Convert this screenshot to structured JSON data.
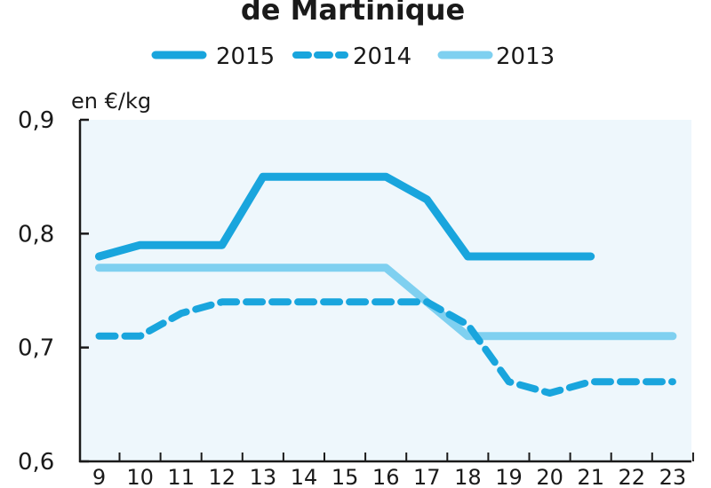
{
  "chart_data": {
    "type": "line",
    "title": "de Martinique",
    "ylabel": "en €/kg",
    "xlabel": "",
    "x": [
      9,
      10,
      11,
      12,
      13,
      14,
      15,
      16,
      17,
      18,
      19,
      20,
      21,
      22,
      23
    ],
    "x_tick_labels": [
      "9",
      "10",
      "11",
      "12",
      "13",
      "14",
      "15",
      "16",
      "17",
      "18",
      "19",
      "20",
      "21",
      "22",
      "23"
    ],
    "ylim": [
      0.6,
      0.9
    ],
    "y_ticks": [
      0.6,
      0.7,
      0.8,
      0.9
    ],
    "y_tick_labels": [
      "0,6",
      "0,7",
      "0,8",
      "0,9"
    ],
    "grid": false,
    "legend_position": "top",
    "series": [
      {
        "name": "2015",
        "style": "solid-thick",
        "color": "#19a5dd",
        "x": [
          9,
          10,
          11,
          12,
          13,
          14,
          15,
          16,
          17,
          18,
          19,
          20,
          21
        ],
        "values": [
          0.78,
          0.79,
          0.79,
          0.79,
          0.85,
          0.85,
          0.85,
          0.85,
          0.83,
          0.78,
          0.78,
          0.78,
          0.78
        ]
      },
      {
        "name": "2014",
        "style": "dashed",
        "color": "#19a5dd",
        "x": [
          9,
          10,
          11,
          12,
          13,
          14,
          15,
          16,
          17,
          18,
          19,
          20,
          21,
          22,
          23
        ],
        "values": [
          0.71,
          0.71,
          0.73,
          0.74,
          0.74,
          0.74,
          0.74,
          0.74,
          0.74,
          0.72,
          0.67,
          0.66,
          0.67,
          0.67,
          0.67
        ]
      },
      {
        "name": "2013",
        "style": "solid",
        "color": "#7fd0f0",
        "x": [
          9,
          10,
          11,
          12,
          13,
          14,
          15,
          16,
          17,
          18,
          19,
          20,
          21,
          22,
          23
        ],
        "values": [
          0.77,
          0.77,
          0.77,
          0.77,
          0.77,
          0.77,
          0.77,
          0.77,
          0.74,
          0.71,
          0.71,
          0.71,
          0.71,
          0.71,
          0.71
        ]
      }
    ],
    "colors": {
      "plot_background": "#eef7fc",
      "axis": "#1a1a1a"
    }
  }
}
